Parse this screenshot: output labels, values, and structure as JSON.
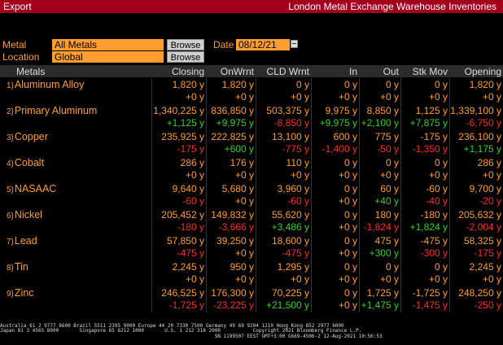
{
  "titlebar": {
    "left": "Export",
    "right": "London Metal Exchange Warehouse Inventories"
  },
  "form": {
    "metal_label": "Metal",
    "metal_value": "All Metals",
    "location_label": "Location",
    "location_value": "Global",
    "browse1": "Browse",
    "browse2": "Browse",
    "date_label": "Date",
    "date_value": "08/12/21"
  },
  "columns": [
    "Metals",
    "Closing",
    "OnWrnt",
    "CLD Wrnt",
    "In",
    "Out",
    "Stk Mov",
    "Opening"
  ],
  "rows": [
    {
      "num": "1)",
      "name": "Aluminum Alloy",
      "v": [
        "1,820 y",
        "1,820 y",
        "0 y",
        "0 y",
        "0 y",
        "0 y",
        "1,820 y"
      ],
      "c": [
        "+0 y",
        "+0 y",
        "+0 y",
        "+0 y",
        "+0 y",
        "+0 y",
        "+0 y"
      ]
    },
    {
      "num": "2)",
      "name": "Primary Aluminum",
      "v": [
        "1,340,225 y",
        "836,850 y",
        "503,375 y",
        "9,975 y",
        "8,850 y",
        "1,125 y",
        "1,339,100 y"
      ],
      "c": [
        "+1,125 y",
        "+9,975 y",
        "-8,850 y",
        "+9,975 y",
        "+2,100 y",
        "+7,875 y",
        "-6,750 y"
      ]
    },
    {
      "num": "3)",
      "name": "Copper",
      "v": [
        "235,925 y",
        "222,825 y",
        "13,100 y",
        "600 y",
        "775 y",
        "-175 y",
        "236,100 y"
      ],
      "c": [
        "-175 y",
        "+600 y",
        "-775 y",
        "-1,400 y",
        "-50 y",
        "-1,350 y",
        "+1,175 y"
      ]
    },
    {
      "num": "4)",
      "name": "Cobalt",
      "v": [
        "286 y",
        "176 y",
        "110 y",
        "0 y",
        "0 y",
        "0 y",
        "286 y"
      ],
      "c": [
        "+0 y",
        "+0 y",
        "+0 y",
        "+0 y",
        "+0 y",
        "+0 y",
        "+0 y"
      ]
    },
    {
      "num": "5)",
      "name": "NASAAC",
      "v": [
        "9,640 y",
        "5,680 y",
        "3,960 y",
        "0 y",
        "60 y",
        "-60 y",
        "9,700 y"
      ],
      "c": [
        "-60 y",
        "+0 y",
        "-60 y",
        "+0 y",
        "+40 y",
        "-40 y",
        "-20 y"
      ]
    },
    {
      "num": "6)",
      "name": "Nickel",
      "v": [
        "205,452 y",
        "149,832 y",
        "55,620 y",
        "0 y",
        "180 y",
        "-180 y",
        "205,632 y"
      ],
      "c": [
        "-180 y",
        "-3,666 y",
        "+3,486 y",
        "+0 y",
        "-1,824 y",
        "+1,824 y",
        "-2,004 y"
      ]
    },
    {
      "num": "7)",
      "name": "Lead",
      "v": [
        "57,850 y",
        "39,250 y",
        "18,600 y",
        "0 y",
        "475 y",
        "-475 y",
        "58,325 y"
      ],
      "c": [
        "-475 y",
        "+0 y",
        "-475 y",
        "+0 y",
        "+300 y",
        "-300 y",
        "-175 y"
      ]
    },
    {
      "num": "8)",
      "name": "Tin",
      "v": [
        "2,245 y",
        "950 y",
        "1,295 y",
        "0 y",
        "0 y",
        "0 y",
        "2,245 y"
      ],
      "c": [
        "+0 y",
        "+0 y",
        "+0 y",
        "+0 y",
        "+0 y",
        "+0 y",
        "+0 y"
      ]
    },
    {
      "num": "9)",
      "name": "Zinc",
      "v": [
        "246,525 y",
        "176,300 y",
        "70,225 y",
        "0 y",
        "1,725 y",
        "-1,725 y",
        "248,250 y"
      ],
      "c": [
        "-1,725 y",
        "-23,225 y",
        "+21,500 y",
        "+0 y",
        "+1,475 y",
        "-1,475 y",
        "-250 y"
      ]
    }
  ],
  "footer": [
    "Australia 61 2 9777 8600 Brazil 5511 2395 9000 Europe 44 20 7330 7500 Germany 49 69 9204 1210 Hong Kong 852 2977 6000",
    "Japan 81 3 4565 8900       Singapore 65 6212 1000       U.S. 1 212 318 2000           Copyright 2021 Bloomberg Finance L.P.",
    "                                                                         SN 1199507 EEST GMT+3:00 G669-4506-2 12-Aug-2021 10:56:53"
  ]
}
